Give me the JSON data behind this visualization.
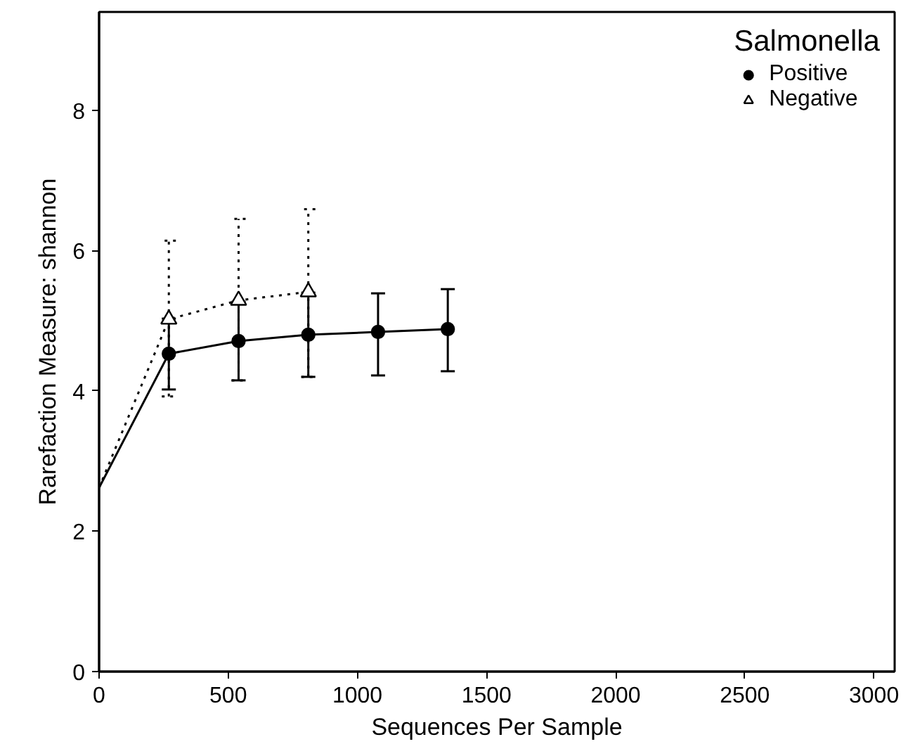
{
  "chart_data": {
    "type": "scatter",
    "xlabel": "Sequences Per Sample",
    "ylabel": "Rarefaction Measure: shannon",
    "legend_title": "Salmonella",
    "legend": "top right",
    "grid": false,
    "xlim": [
      0,
      3080
    ],
    "ylim": [
      0,
      9.4
    ],
    "xticks": [
      0,
      500,
      1000,
      1500,
      2000,
      2500,
      3000
    ],
    "yticks": [
      0,
      2,
      4,
      6,
      8
    ],
    "series": [
      {
        "type": "line",
        "color": "#000000",
        "line_style": "solid",
        "marker": "none",
        "x": [
          0,
          270,
          540,
          810,
          1080,
          1350
        ],
        "values": [
          2.62,
          4.53,
          4.71,
          4.8,
          4.84,
          4.88
        ]
      },
      {
        "type": "line",
        "color": "#000000",
        "line_style": "dotted",
        "marker": "none",
        "x": [
          0,
          270,
          540,
          810
        ],
        "values": [
          2.62,
          5.02,
          5.29,
          5.41
        ]
      },
      {
        "name": "Positive",
        "color": "#000000",
        "marker": "circle",
        "line_style": "solid",
        "x": [
          270,
          540,
          810,
          1080,
          1350
        ],
        "values": [
          4.53,
          4.71,
          4.8,
          4.84,
          4.88
        ],
        "errors": [
          [
            4.02,
            5.03
          ],
          [
            4.15,
            5.27
          ],
          [
            4.2,
            5.4
          ],
          [
            4.22,
            5.39
          ],
          [
            4.28,
            5.45
          ]
        ]
      },
      {
        "name": "Negative",
        "color": "#000000",
        "marker": "triangle",
        "line_style": "dotted",
        "x": [
          270,
          540,
          810
        ],
        "values": [
          5.02,
          5.29,
          5.41
        ],
        "errors": [
          [
            3.92,
            6.14
          ],
          [
            4.15,
            6.45
          ],
          [
            4.2,
            6.59
          ]
        ]
      }
    ]
  }
}
